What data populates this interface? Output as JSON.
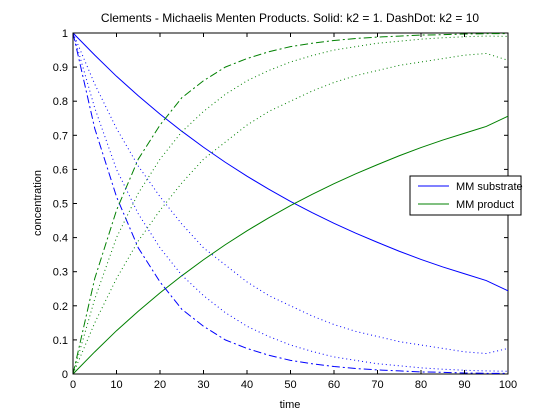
{
  "chart_data": {
    "type": "line",
    "title": "Clements - Michaelis Menten Products. Solid: k2 = 1. DashDot: k2 = 10",
    "xlabel": "time",
    "ylabel": "concentration",
    "xlim": [
      0,
      100
    ],
    "ylim": [
      0,
      1
    ],
    "x_ticks": [
      "0",
      "10",
      "20",
      "30",
      "40",
      "50",
      "60",
      "70",
      "80",
      "90",
      "100"
    ],
    "y_ticks": [
      "0",
      "0.1",
      "0.2",
      "0.3",
      "0.4",
      "0.5",
      "0.6",
      "0.7",
      "0.8",
      "0.9",
      "1"
    ],
    "grid": false,
    "legend_position": "right",
    "legend": [
      {
        "label": "MM substrate",
        "color": "#0000ff"
      },
      {
        "label": "MM product",
        "color": "#008000"
      }
    ],
    "x": [
      0,
      5,
      10,
      15,
      20,
      25,
      30,
      35,
      40,
      45,
      50,
      55,
      60,
      65,
      70,
      75,
      80,
      85,
      90,
      95,
      100
    ],
    "series": [
      {
        "color": "#0000ff",
        "style": "solid",
        "values": [
          1.0,
          0.935,
          0.873,
          0.816,
          0.762,
          0.712,
          0.665,
          0.621,
          0.58,
          0.542,
          0.506,
          0.473,
          0.442,
          0.413,
          0.386,
          0.36,
          0.336,
          0.314,
          0.294,
          0.274,
          0.244
        ]
      },
      {
        "color": "#008000",
        "style": "solid",
        "values": [
          0.0,
          0.065,
          0.127,
          0.184,
          0.238,
          0.288,
          0.335,
          0.379,
          0.42,
          0.458,
          0.494,
          0.527,
          0.558,
          0.587,
          0.614,
          0.64,
          0.664,
          0.686,
          0.706,
          0.726,
          0.756
        ]
      },
      {
        "color": "#0000ff",
        "style": "dashdot",
        "values": [
          1.0,
          0.72,
          0.52,
          0.37,
          0.27,
          0.19,
          0.14,
          0.1,
          0.075,
          0.055,
          0.04,
          0.03,
          0.022,
          0.016,
          0.012,
          0.009,
          0.006,
          0.005,
          0.003,
          0.002,
          0.002
        ]
      },
      {
        "color": "#008000",
        "style": "dashdot",
        "values": [
          0.0,
          0.28,
          0.48,
          0.63,
          0.73,
          0.81,
          0.86,
          0.9,
          0.925,
          0.945,
          0.96,
          0.97,
          0.978,
          0.984,
          0.988,
          0.991,
          0.994,
          0.995,
          0.997,
          0.998,
          0.998
        ]
      },
      {
        "color": "#0000ff",
        "style": "dotted",
        "values": [
          1.0,
          0.85,
          0.72,
          0.61,
          0.52,
          0.44,
          0.37,
          0.32,
          0.27,
          0.23,
          0.2,
          0.17,
          0.145,
          0.125,
          0.11,
          0.095,
          0.085,
          0.075,
          0.065,
          0.06,
          0.075
        ]
      },
      {
        "color": "#008000",
        "style": "dotted",
        "values": [
          0.0,
          0.15,
          0.28,
          0.39,
          0.48,
          0.56,
          0.63,
          0.68,
          0.73,
          0.77,
          0.8,
          0.83,
          0.855,
          0.875,
          0.89,
          0.905,
          0.915,
          0.925,
          0.935,
          0.94,
          0.92
        ]
      },
      {
        "color": "#0000ff",
        "style": "dotted",
        "values": [
          1.0,
          0.78,
          0.6,
          0.47,
          0.37,
          0.29,
          0.23,
          0.18,
          0.14,
          0.11,
          0.085,
          0.066,
          0.05,
          0.04,
          0.03,
          0.024,
          0.018,
          0.014,
          0.011,
          0.009,
          0.008
        ]
      },
      {
        "color": "#008000",
        "style": "dotted",
        "values": [
          0.0,
          0.22,
          0.4,
          0.53,
          0.63,
          0.71,
          0.77,
          0.82,
          0.86,
          0.89,
          0.915,
          0.934,
          0.95,
          0.96,
          0.97,
          0.976,
          0.982,
          0.986,
          0.989,
          0.991,
          0.99
        ]
      }
    ]
  }
}
